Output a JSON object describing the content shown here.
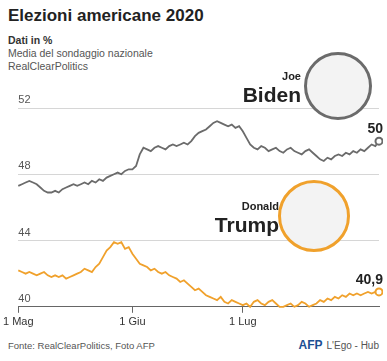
{
  "chart_data": {
    "type": "line",
    "title": "Elezioni americane 2020",
    "subtitle": [
      "Dati in %",
      "Media del sondaggio nazionale",
      "RealClearPolitics"
    ],
    "source": "Fonte: RealClearPolitics, Foto AFP",
    "credits": [
      "AFP",
      "L'Ego - Hub"
    ],
    "categories": [
      "1 Mag",
      null,
      null,
      null,
      null,
      null,
      null,
      null,
      null,
      null,
      null,
      null,
      null,
      null,
      null,
      null,
      null,
      null,
      null,
      null,
      null,
      null,
      null,
      null,
      null,
      null,
      null,
      null,
      null,
      null,
      null,
      "1 Giu",
      null,
      null,
      null,
      null,
      null,
      null,
      null,
      null,
      null,
      null,
      null,
      null,
      null,
      null,
      null,
      null,
      null,
      null,
      null,
      null,
      null,
      null,
      null,
      null,
      null,
      null,
      null,
      null,
      null,
      "1 Lug",
      null,
      null,
      null,
      null,
      null,
      null,
      null,
      null,
      null,
      null,
      null,
      null,
      null,
      null,
      null,
      null,
      null,
      null,
      null,
      null,
      null,
      null,
      null,
      null,
      null,
      null,
      null,
      null,
      null,
      null,
      null,
      null,
      null,
      null,
      null,
      null,
      null
    ],
    "series": [
      {
        "name": "Joe Biden",
        "color": "#6b6b6b",
        "values": [
          47.3,
          47.4,
          47.5,
          47.6,
          47.5,
          47.4,
          47.2,
          47.0,
          46.9,
          46.9,
          47.0,
          46.9,
          47.1,
          47.2,
          47.3,
          47.4,
          47.3,
          47.4,
          47.5,
          47.4,
          47.6,
          47.5,
          47.7,
          47.6,
          47.8,
          47.9,
          48.0,
          48.1,
          48.0,
          48.2,
          48.3,
          48.3,
          48.5,
          49.2,
          49.6,
          49.5,
          49.4,
          49.6,
          49.7,
          49.6,
          49.5,
          49.7,
          49.8,
          49.7,
          49.8,
          49.9,
          49.8,
          50.0,
          50.3,
          50.5,
          50.6,
          50.7,
          50.9,
          51.1,
          51.2,
          51.1,
          51.0,
          50.9,
          51.0,
          50.8,
          50.9,
          50.6,
          50.2,
          49.8,
          49.6,
          49.5,
          49.7,
          49.6,
          49.4,
          49.5,
          49.6,
          49.4,
          49.3,
          49.5,
          49.6,
          49.4,
          49.3,
          49.2,
          49.4,
          49.5,
          49.3,
          49.1,
          48.9,
          48.8,
          49.0,
          48.9,
          49.1,
          49.2,
          49.1,
          49.3,
          49.2,
          49.4,
          49.3,
          49.5,
          49.4,
          49.6,
          49.8,
          49.7,
          50.0
        ],
        "value_labels": [
          null,
          null,
          null,
          null,
          null,
          null,
          null,
          null,
          null,
          null,
          null,
          null,
          null,
          null,
          null,
          null,
          null,
          null,
          null,
          null,
          null,
          null,
          null,
          null,
          null,
          null,
          null,
          null,
          null,
          null,
          null,
          null,
          null,
          null,
          null,
          null,
          null,
          null,
          null,
          null,
          null,
          null,
          null,
          null,
          null,
          null,
          null,
          null,
          null,
          null,
          null,
          null,
          null,
          null,
          null,
          null,
          null,
          null,
          null,
          null,
          null,
          null,
          null,
          null,
          null,
          null,
          null,
          null,
          null,
          null,
          null,
          null,
          null,
          null,
          null,
          null,
          null,
          null,
          null,
          null,
          null,
          null,
          null,
          null,
          null,
          null,
          null,
          null,
          null,
          null,
          null,
          null,
          null,
          null,
          null,
          null,
          null,
          null,
          "50"
        ]
      },
      {
        "name": "Donald Trump",
        "color": "#f0a12c",
        "values": [
          42.2,
          42.1,
          42.0,
          42.1,
          42.0,
          41.9,
          42.0,
          42.1,
          41.9,
          41.8,
          41.9,
          41.8,
          41.9,
          41.7,
          41.8,
          41.9,
          42.0,
          42.1,
          42.3,
          42.2,
          42.1,
          42.4,
          42.6,
          43.0,
          43.4,
          43.6,
          43.9,
          43.8,
          43.9,
          43.5,
          43.6,
          43.2,
          42.9,
          42.6,
          42.5,
          42.4,
          42.2,
          42.3,
          42.1,
          42.0,
          42.1,
          41.9,
          41.8,
          41.7,
          41.5,
          41.6,
          41.4,
          41.2,
          41.0,
          41.1,
          40.9,
          40.7,
          40.6,
          40.5,
          40.4,
          40.6,
          40.3,
          40.2,
          40.4,
          40.3,
          40.2,
          40.1,
          40.2,
          40.0,
          40.3,
          40.4,
          40.2,
          40.1,
          40.3,
          40.4,
          40.2,
          40.0,
          40.0,
          40.1,
          40.2,
          40.0,
          40.1,
          40.3,
          40.2,
          40.0,
          40.1,
          40.2,
          40.4,
          40.3,
          40.5,
          40.4,
          40.6,
          40.5,
          40.7,
          40.6,
          40.8,
          40.7,
          40.8,
          40.7,
          40.8,
          40.9,
          40.8,
          40.9,
          40.9
        ],
        "value_labels": [
          null,
          null,
          null,
          null,
          null,
          null,
          null,
          null,
          null,
          null,
          null,
          null,
          null,
          null,
          null,
          null,
          null,
          null,
          null,
          null,
          null,
          null,
          null,
          null,
          null,
          null,
          null,
          null,
          null,
          null,
          null,
          null,
          null,
          null,
          null,
          null,
          null,
          null,
          null,
          null,
          null,
          null,
          null,
          null,
          null,
          null,
          null,
          null,
          null,
          null,
          null,
          null,
          null,
          null,
          null,
          null,
          null,
          null,
          null,
          null,
          null,
          null,
          null,
          null,
          null,
          null,
          null,
          null,
          null,
          null,
          null,
          null,
          null,
          null,
          null,
          null,
          null,
          null,
          null,
          null,
          null,
          null,
          null,
          null,
          null,
          null,
          null,
          null,
          null,
          null,
          null,
          null,
          null,
          null,
          null,
          null,
          null,
          null,
          "40,9"
        ]
      }
    ],
    "ylim": [
      40,
      52
    ],
    "yticks": [
      40,
      44,
      48,
      52
    ],
    "grid": true
  }
}
